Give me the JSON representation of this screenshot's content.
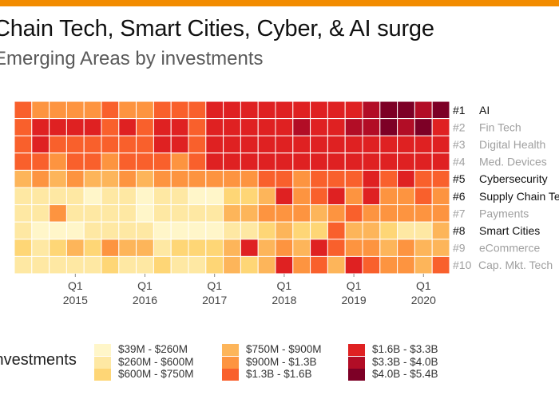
{
  "header": {
    "title": "Chain Tech, Smart Cities, Cyber, & AI surge",
    "subtitle": "Emerging Areas by investments",
    "accent_color": "#f28c00"
  },
  "chart_data": {
    "type": "heatmap",
    "x_ticks": [
      {
        "quarter": "Q1",
        "year": "2015",
        "col": 3
      },
      {
        "quarter": "Q1",
        "year": "2016",
        "col": 7
      },
      {
        "quarter": "Q1",
        "year": "2017",
        "col": 11
      },
      {
        "quarter": "Q1",
        "year": "2018",
        "col": 15
      },
      {
        "quarter": "Q1",
        "year": "2019",
        "col": 19
      },
      {
        "quarter": "Q1",
        "year": "2020",
        "col": 23
      }
    ],
    "rows": [
      {
        "rank": "#1",
        "name": "AI",
        "highlight": true
      },
      {
        "rank": "#2",
        "name": "Fin Tech",
        "highlight": false
      },
      {
        "rank": "#3",
        "name": "Digital Health",
        "highlight": false
      },
      {
        "rank": "#4",
        "name": "Med. Devices",
        "highlight": false
      },
      {
        "rank": "#5",
        "name": "Cybersecurity",
        "highlight": true
      },
      {
        "rank": "#6",
        "name": "Supply Chain Tech",
        "highlight": true
      },
      {
        "rank": "#7",
        "name": "Payments",
        "highlight": false
      },
      {
        "rank": "#8",
        "name": "Smart Cities",
        "highlight": true
      },
      {
        "rank": "#9",
        "name": "eCommerce",
        "highlight": false
      },
      {
        "rank": "#10",
        "name": "Cap. Mkt. Tech",
        "highlight": false
      }
    ],
    "bins": [
      {
        "label": "$39M - $260M",
        "color": "#fff6c9"
      },
      {
        "label": "$260M - $600M",
        "color": "#fee8a3"
      },
      {
        "label": "$600M - $750M",
        "color": "#fed676"
      },
      {
        "label": "$750M - $900M",
        "color": "#fdb55a"
      },
      {
        "label": "$900M - $1.3B",
        "color": "#fd9440"
      },
      {
        "label": "$1.3B - $1.6B",
        "color": "#f9602c"
      },
      {
        "label": "$1.6B - $3.3B",
        "color": "#df2122"
      },
      {
        "label": "$3.3B - $4.0B",
        "color": "#b20d26"
      },
      {
        "label": "$4.0B - $5.4B",
        "color": "#7d0026"
      }
    ],
    "values": [
      [
        5,
        4,
        4,
        4,
        4,
        5,
        4,
        4,
        5,
        5,
        5,
        6,
        6,
        6,
        6,
        6,
        6,
        6,
        6,
        6,
        7,
        8,
        8,
        7,
        8
      ],
      [
        5,
        6,
        6,
        6,
        6,
        5,
        6,
        5,
        6,
        6,
        5,
        6,
        6,
        6,
        6,
        6,
        7,
        6,
        6,
        7,
        7,
        8,
        7,
        8,
        6
      ],
      [
        5,
        6,
        5,
        5,
        5,
        5,
        5,
        5,
        6,
        6,
        5,
        6,
        6,
        6,
        6,
        6,
        6,
        6,
        6,
        6,
        6,
        6,
        6,
        6,
        6
      ],
      [
        5,
        5,
        4,
        5,
        5,
        4,
        5,
        5,
        5,
        4,
        5,
        6,
        6,
        6,
        6,
        6,
        6,
        6,
        6,
        6,
        6,
        6,
        6,
        6,
        6
      ],
      [
        3,
        4,
        3,
        4,
        3,
        3,
        4,
        3,
        4,
        4,
        4,
        4,
        4,
        4,
        5,
        5,
        4,
        5,
        5,
        5,
        6,
        5,
        6,
        5,
        5
      ],
      [
        1,
        1,
        1,
        1,
        0,
        1,
        1,
        0,
        1,
        1,
        0,
        0,
        2,
        2,
        3,
        6,
        4,
        5,
        6,
        4,
        6,
        4,
        4,
        5,
        4
      ],
      [
        1,
        1,
        4,
        1,
        1,
        1,
        1,
        0,
        1,
        1,
        1,
        1,
        3,
        3,
        4,
        4,
        4,
        3,
        4,
        5,
        4,
        4,
        4,
        4,
        4
      ],
      [
        1,
        0,
        0,
        0,
        1,
        1,
        1,
        1,
        0,
        0,
        0,
        0,
        1,
        1,
        2,
        3,
        2,
        2,
        5,
        3,
        3,
        2,
        1,
        1,
        3
      ],
      [
        2,
        1,
        2,
        3,
        2,
        4,
        3,
        3,
        1,
        2,
        2,
        2,
        3,
        6,
        3,
        4,
        3,
        6,
        5,
        4,
        4,
        3,
        4,
        3,
        3
      ],
      [
        1,
        1,
        1,
        1,
        1,
        2,
        1,
        1,
        2,
        1,
        1,
        2,
        3,
        2,
        3,
        6,
        4,
        5,
        3,
        6,
        5,
        4,
        4,
        3,
        5
      ]
    ],
    "legend_title": "Investments",
    "xlabel": "",
    "ylabel": ""
  }
}
